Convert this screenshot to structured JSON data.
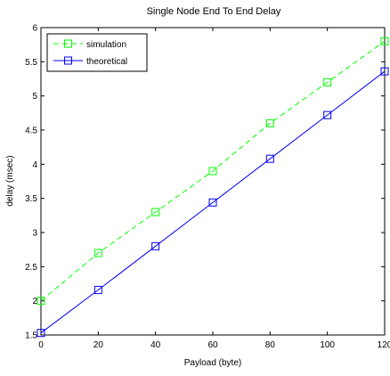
{
  "chart_data": {
    "type": "line",
    "title": "Single Node End To End Delay",
    "xlabel": "Payload (byte)",
    "ylabel": "delay (msec)",
    "xlim": [
      0,
      120
    ],
    "ylim": [
      1.5,
      6
    ],
    "xticks": [
      0,
      20,
      40,
      60,
      80,
      100,
      120
    ],
    "yticks": [
      1.5,
      2,
      2.5,
      3,
      3.5,
      4,
      4.5,
      5,
      5.5,
      6
    ],
    "xtick_labels": [
      "0",
      "20",
      "40",
      "60",
      "80",
      "100",
      "120"
    ],
    "ytick_labels": [
      "1.5",
      "2",
      "2.5",
      "3",
      "3.5",
      "4",
      "4.5",
      "5",
      "5.5",
      "6"
    ],
    "grid": false,
    "legend_position": "top-left",
    "x": [
      0,
      20,
      40,
      60,
      80,
      100,
      120
    ],
    "series": [
      {
        "name": "simulation",
        "values": [
          2.0,
          2.7,
          3.3,
          3.9,
          4.6,
          5.2,
          5.8
        ],
        "color": "#00ff00",
        "line_style": "dashed",
        "marker": "square"
      },
      {
        "name": "theoretical",
        "values": [
          1.53,
          2.16,
          2.8,
          3.44,
          4.08,
          4.72,
          5.36
        ],
        "color": "#0000ff",
        "line_style": "solid",
        "marker": "square"
      }
    ]
  }
}
